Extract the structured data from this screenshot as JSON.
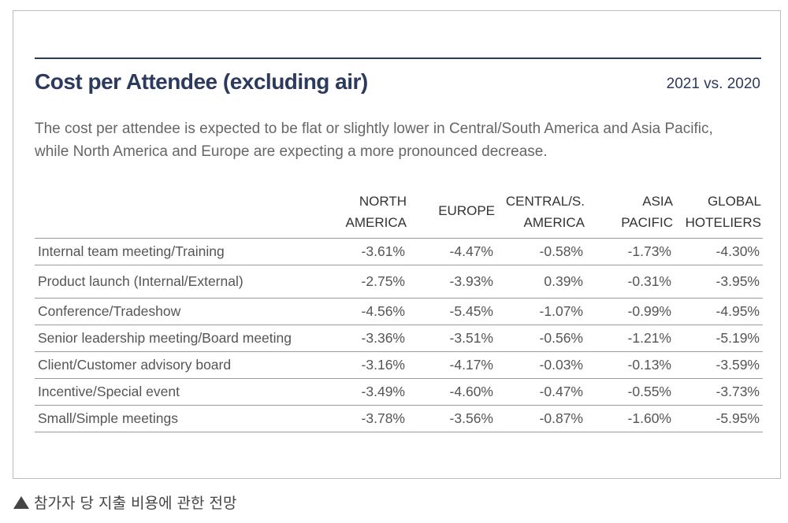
{
  "header": {
    "title": "Cost per Attendee (excluding air)",
    "period": "2021 vs. 2020",
    "description": "The cost per attendee is expected to be flat or slightly lower in Central/South America and Asia Pacific, while North America and Europe are expecting a more pronounced decrease."
  },
  "caption": "참가자 당 지출 비용에 관한 전망",
  "chart_data": {
    "type": "table",
    "title": "Cost per Attendee (excluding air)",
    "subtitle": "2021 vs. 2020",
    "columns": [
      {
        "line1": "NORTH",
        "line2": "AMERICA"
      },
      {
        "line1": "EUROPE",
        "line2": ""
      },
      {
        "line1": "CENTRAL/S.",
        "line2": "AMERICA"
      },
      {
        "line1": "ASIA",
        "line2": "PACIFIC"
      },
      {
        "line1": "GLOBAL",
        "line2": "HOTELIERS"
      }
    ],
    "rows": [
      {
        "label": "Internal team meeting/Training",
        "values": [
          "-3.61%",
          "-4.47%",
          "-0.58%",
          "-1.73%",
          "-4.30%"
        ]
      },
      {
        "label": "Product launch (Internal/External)",
        "values": [
          "-2.75%",
          "-3.93%",
          "0.39%",
          "-0.31%",
          "-3.95%"
        ]
      },
      {
        "label": "Conference/Tradeshow",
        "values": [
          "-4.56%",
          "-5.45%",
          "-1.07%",
          "-0.99%",
          "-4.95%"
        ]
      },
      {
        "label": "Senior leadership meeting/Board meeting",
        "values": [
          "-3.36%",
          "-3.51%",
          "-0.56%",
          "-1.21%",
          "-5.19%"
        ]
      },
      {
        "label": "Client/Customer advisory board",
        "values": [
          "-3.16%",
          "-4.17%",
          "-0.03%",
          "-0.13%",
          "-3.59%"
        ]
      },
      {
        "label": "Incentive/Special event",
        "values": [
          "-3.49%",
          "-4.60%",
          "-0.47%",
          "-0.55%",
          "-3.73%"
        ]
      },
      {
        "label": "Small/Simple meetings",
        "values": [
          "-3.78%",
          "-3.56%",
          "-0.87%",
          "-1.60%",
          "-5.95%"
        ]
      }
    ]
  },
  "colors": {
    "title": "#2c3a5e",
    "text": "#555555",
    "rule": "#9a9a9a"
  }
}
